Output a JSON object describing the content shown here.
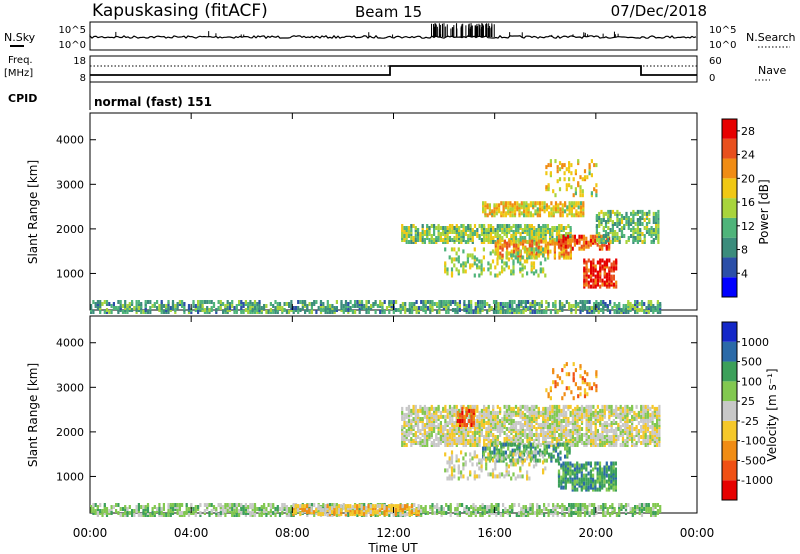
{
  "header": {
    "station": "Kapuskasing (fitACF)",
    "beam": "Beam 15",
    "date": "07/Dec/2018"
  },
  "noise_panel": {
    "left_label": "N.Sky",
    "left_ticks": [
      "10^5",
      "10^0"
    ],
    "right_label": "N.Search",
    "right_ticks": [
      "10^5",
      "10^0"
    ]
  },
  "freq_panel": {
    "left_label_1": "Freq.",
    "left_label_2": "[MHz]",
    "left_ticks": [
      "18",
      "8"
    ],
    "right_label": "Nave",
    "right_ticks": [
      "60",
      "0"
    ]
  },
  "cpid_panel": {
    "label": "CPID",
    "text": "normal (fast) 151"
  },
  "colors": {
    "power_scale": [
      "#0000ff",
      "#2b4fa8",
      "#3b8c7c",
      "#4fb47a",
      "#a8d43c",
      "#f0c814",
      "#f08c14",
      "#e8501e",
      "#e60000"
    ],
    "velocity_scale": [
      "#e60000",
      "#f05014",
      "#f08c14",
      "#f5c82a",
      "#c8c8c8",
      "#82c850",
      "#3ca05a",
      "#2b6aa8",
      "#1428c8"
    ]
  },
  "chart_data": [
    {
      "type": "heatmap",
      "name": "power",
      "ylabel": "Slant Range [km]",
      "ylim": [
        180,
        4600
      ],
      "yticks": [
        "1000",
        "2000",
        "3000",
        "4000"
      ],
      "xticks": [
        "00:00",
        "04:00",
        "08:00",
        "12:00",
        "16:00",
        "20:00",
        "00:00"
      ],
      "xlim": [
        0,
        24
      ],
      "colorbar": {
        "label": "Power [dB]",
        "ticks": [
          "4",
          "8",
          "12",
          "16",
          "20",
          "24",
          "28"
        ],
        "range": [
          0,
          30
        ]
      },
      "regions": [
        {
          "t": [
            0,
            22.5
          ],
          "r": [
            180,
            420
          ],
          "v": 10,
          "density": 0.55,
          "note": "near-range band"
        },
        {
          "t": [
            12.3,
            19
          ],
          "r": [
            1750,
            2150
          ],
          "v": 14,
          "density": 0.6
        },
        {
          "t": [
            15.5,
            19.5
          ],
          "r": [
            2350,
            2650
          ],
          "v": 18,
          "density": 0.6
        },
        {
          "t": [
            16,
            19
          ],
          "r": [
            1400,
            1800
          ],
          "v": 22,
          "density": 0.55
        },
        {
          "t": [
            18.5,
            20.5
          ],
          "r": [
            1600,
            1900
          ],
          "v": 26,
          "density": 0.55
        },
        {
          "t": [
            19.5,
            20.8
          ],
          "r": [
            750,
            1350
          ],
          "v": 28,
          "density": 0.6
        },
        {
          "t": [
            20,
            22.5
          ],
          "r": [
            1750,
            2450
          ],
          "v": 12,
          "density": 0.45
        },
        {
          "t": [
            14,
            18
          ],
          "r": [
            1000,
            1600
          ],
          "v": 15,
          "density": 0.25
        },
        {
          "t": [
            18,
            20
          ],
          "r": [
            2800,
            3600
          ],
          "v": 18,
          "density": 0.15
        }
      ],
      "xlabel": ""
    },
    {
      "type": "heatmap",
      "name": "velocity",
      "ylabel": "Slant Range [km]",
      "ylim": [
        180,
        4600
      ],
      "yticks": [
        "1000",
        "2000",
        "3000",
        "4000"
      ],
      "xticks": [
        "00:00",
        "04:00",
        "08:00",
        "12:00",
        "16:00",
        "20:00",
        "00:00"
      ],
      "xlim": [
        0,
        24
      ],
      "xlabel": "Time UT",
      "colorbar": {
        "label": "Velocity [m s⁻¹]",
        "ticks": [
          "1000",
          "500",
          "100",
          "25",
          "-25",
          "-100",
          "-500",
          "-1000"
        ]
      },
      "regions": [
        {
          "t": [
            0,
            22.5
          ],
          "r": [
            180,
            420
          ],
          "class": 5,
          "density": 0.55
        },
        {
          "t": [
            8,
            13
          ],
          "r": [
            200,
            420
          ],
          "class": 3,
          "density": 0.6
        },
        {
          "t": [
            12.3,
            22.5
          ],
          "r": [
            1750,
            2650
          ],
          "class": 4,
          "density": 0.6
        },
        {
          "t": [
            15.5,
            19
          ],
          "r": [
            1400,
            1800
          ],
          "class": 6,
          "density": 0.45
        },
        {
          "t": [
            18.5,
            20.8
          ],
          "r": [
            750,
            1350
          ],
          "class": 6,
          "density": 0.6
        },
        {
          "t": [
            14.5,
            15.2
          ],
          "r": [
            2200,
            2600
          ],
          "class": 1,
          "density": 0.6
        },
        {
          "t": [
            14,
            18
          ],
          "r": [
            1000,
            1600
          ],
          "class": 4,
          "density": 0.25
        },
        {
          "t": [
            18,
            20
          ],
          "r": [
            2800,
            3600
          ],
          "class": 2,
          "density": 0.15
        }
      ]
    }
  ]
}
